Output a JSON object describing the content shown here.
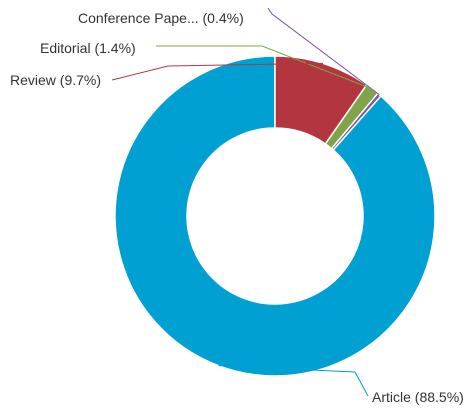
{
  "chart_data": {
    "type": "pie",
    "variant": "donut",
    "title": "",
    "legend": "none",
    "slices": [
      {
        "label": "Article (88.5%)",
        "value": 88.5,
        "color": "#00a0d2"
      },
      {
        "label": "Conference Pape... (0.4%)",
        "value": 0.4,
        "color": "#7b4fa0"
      },
      {
        "label": "Editorial (1.4%)",
        "value": 1.4,
        "color": "#7fa44a"
      },
      {
        "label": "Review (9.7%)",
        "value": 9.7,
        "color": "#b3363f"
      }
    ]
  }
}
